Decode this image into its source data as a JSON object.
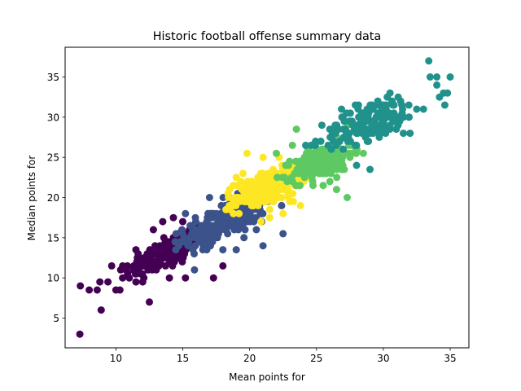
{
  "chart_data": {
    "type": "scatter",
    "title": "Historic football offense summary data",
    "xlabel": "Mean points for",
    "ylabel": "Median points for",
    "xlim": [
      6.2,
      36.4
    ],
    "ylim": [
      1.3,
      38.7
    ],
    "xticks": [
      10,
      15,
      20,
      25,
      30,
      35
    ],
    "yticks": [
      5,
      10,
      15,
      20,
      25,
      30,
      35
    ],
    "grid": false,
    "series": [
      {
        "color": "#440154",
        "clusters": [
          {
            "cx": 13.8,
            "cy": 13.2,
            "sx": 1.6,
            "sy": 1.6,
            "n": 170,
            "rho": 0.75
          }
        ],
        "points": [
          [
            7.3,
            3.0
          ],
          [
            8.0,
            8.5
          ],
          [
            8.6,
            8.5
          ],
          [
            8.8,
            9.5
          ],
          [
            8.9,
            6.0
          ],
          [
            9.4,
            9.5
          ],
          [
            10.0,
            8.5
          ],
          [
            10.3,
            8.5
          ],
          [
            10.5,
            11.5
          ],
          [
            10.5,
            10.0
          ],
          [
            11.0,
            10.0
          ],
          [
            11.5,
            9.5
          ],
          [
            12.0,
            9.5
          ],
          [
            12.5,
            7.0
          ],
          [
            14.0,
            10.0
          ],
          [
            15.2,
            10.0
          ],
          [
            17.3,
            10.0
          ],
          [
            18.0,
            11.5
          ],
          [
            13.5,
            17.0
          ],
          [
            14.3,
            17.5
          ],
          [
            15.0,
            17.0
          ],
          [
            12.8,
            16.0
          ],
          [
            11.5,
            13.5
          ]
        ]
      },
      {
        "color": "#3b528b",
        "clusters": [
          {
            "cx": 18.2,
            "cy": 17.2,
            "sx": 1.5,
            "sy": 1.5,
            "n": 280,
            "rho": 0.7
          }
        ],
        "points": [
          [
            15.2,
            18.0
          ],
          [
            15.6,
            16.5
          ],
          [
            16.5,
            13.5
          ],
          [
            18.0,
            13.5
          ],
          [
            19.0,
            13.5
          ],
          [
            21.0,
            14.0
          ],
          [
            22.5,
            15.5
          ],
          [
            20.5,
            16.0
          ],
          [
            17.0,
            20.0
          ],
          [
            18.5,
            20.0
          ],
          [
            20.0,
            17.5
          ]
        ]
      },
      {
        "color": "#fde725",
        "clusters": [
          {
            "cx": 21.5,
            "cy": 21.3,
            "sx": 1.3,
            "sy": 1.2,
            "n": 320,
            "rho": 0.6
          }
        ],
        "points": [
          [
            18.5,
            21.0
          ],
          [
            19.0,
            22.5
          ],
          [
            19.5,
            23.0
          ],
          [
            19.8,
            25.5
          ],
          [
            21.0,
            25.0
          ],
          [
            22.2,
            25.0
          ],
          [
            23.5,
            22.0
          ],
          [
            23.8,
            19.0
          ],
          [
            22.5,
            18.0
          ],
          [
            21.5,
            17.5
          ],
          [
            23.0,
            19.5
          ]
        ]
      },
      {
        "color": "#5ec962",
        "clusters": [
          {
            "cx": 25.5,
            "cy": 24.5,
            "sx": 1.1,
            "sy": 1.2,
            "n": 230,
            "rho": 0.55
          }
        ],
        "points": [
          [
            22.0,
            25.5
          ],
          [
            23.2,
            26.5
          ],
          [
            23.5,
            28.5
          ],
          [
            26.5,
            21.0
          ],
          [
            26.0,
            22.0
          ],
          [
            27.3,
            20.0
          ],
          [
            25.5,
            21.5
          ],
          [
            27.5,
            25.0
          ],
          [
            28.5,
            25.5
          ]
        ]
      },
      {
        "color": "#21918c",
        "clusters": [
          {
            "cx": 29.0,
            "cy": 29.5,
            "sx": 1.8,
            "sy": 1.6,
            "n": 170,
            "rho": 0.65
          }
        ],
        "points": [
          [
            33.4,
            37.0
          ],
          [
            33.5,
            35.0
          ],
          [
            34.0,
            35.0
          ],
          [
            34.2,
            32.5
          ],
          [
            34.0,
            34.0
          ],
          [
            34.5,
            33.0
          ],
          [
            34.6,
            31.5
          ],
          [
            34.8,
            33.0
          ],
          [
            35.0,
            35.0
          ],
          [
            33.0,
            31.0
          ],
          [
            32.5,
            31.0
          ],
          [
            32.0,
            28.0
          ],
          [
            31.5,
            28.0
          ],
          [
            30.5,
            33.0
          ],
          [
            28.0,
            24.0
          ],
          [
            29.0,
            23.5
          ],
          [
            26.0,
            28.5
          ],
          [
            27.0,
            26.0
          ]
        ]
      }
    ]
  }
}
